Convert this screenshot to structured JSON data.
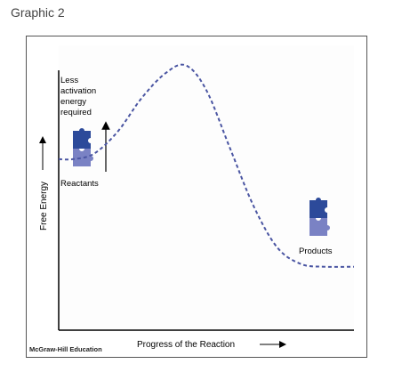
{
  "caption": "Graphic 2",
  "credit": "McGraw-Hill Education",
  "chart_data": {
    "type": "line",
    "xlabel": "Progress of the Reaction",
    "ylabel": "Free Energy",
    "series": [
      {
        "x": [
          0,
          0.05,
          0.12,
          0.2,
          0.28,
          0.36,
          0.43,
          0.5,
          0.58,
          0.66,
          0.74,
          0.82,
          0.9,
          1.0
        ],
        "values": [
          0.62,
          0.62,
          0.64,
          0.72,
          0.84,
          0.93,
          0.96,
          0.87,
          0.66,
          0.45,
          0.3,
          0.24,
          0.23,
          0.23
        ]
      }
    ],
    "annotations": {
      "activation_label": [
        "Less",
        "activation",
        "energy",
        "required"
      ],
      "reactants_label": "Reactants",
      "products_label": "Products"
    },
    "colors": {
      "curve": "#4a55a2",
      "puzzle_dark": "#2c4a9a",
      "puzzle_light": "#7a82c4",
      "axis": "#000000"
    }
  }
}
